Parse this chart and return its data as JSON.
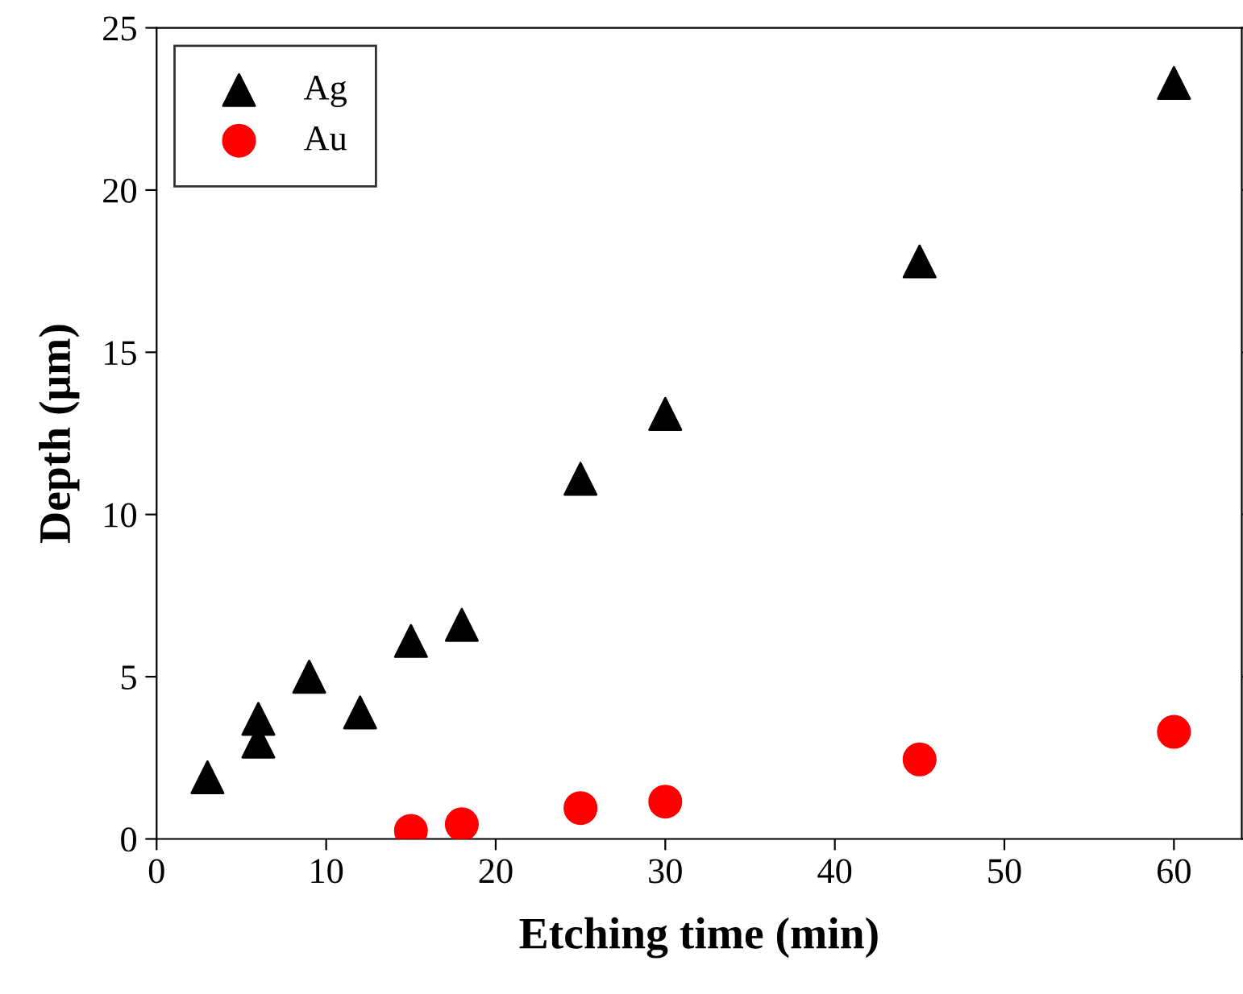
{
  "chart_data": {
    "type": "scatter",
    "xlabel": "Etching time (min)",
    "ylabel": "Depth (μm)",
    "xlim": [
      0,
      64
    ],
    "ylim": [
      0,
      25
    ],
    "xticks": [
      0,
      10,
      20,
      30,
      40,
      50,
      60
    ],
    "yticks": [
      0,
      5,
      10,
      15,
      20,
      25
    ],
    "grid": false,
    "legend": "top left",
    "series": [
      {
        "name": "Ag",
        "color": "#000000",
        "marker": "triangle",
        "x": [
          3,
          6,
          6,
          9,
          12,
          15,
          18,
          25,
          30,
          45,
          60
        ],
        "values": [
          1.9,
          3.7,
          3.0,
          5.0,
          3.9,
          6.1,
          6.6,
          11.1,
          13.1,
          17.8,
          23.3
        ]
      },
      {
        "name": "Au",
        "color": "#ff0000",
        "marker": "circle",
        "x": [
          15,
          18,
          25,
          30,
          45,
          60
        ],
        "values": [
          0.25,
          0.45,
          0.95,
          1.15,
          2.45,
          3.3
        ]
      }
    ]
  }
}
